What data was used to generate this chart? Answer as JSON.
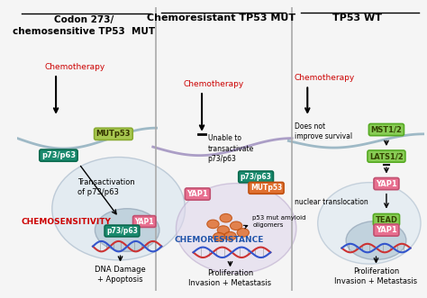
{
  "bg_color": "#f5f5f5",
  "cell_color": "#dce8f0",
  "nucleus_color": "#c8d8e8",
  "panel2_cell_color": "#e0d8ec",
  "title1": "Codon 273/\nchemosensitive TP53  MUT",
  "title2": "Chemoresistant TP53 MUT",
  "title3": "TP53 WT",
  "chemo_color": "#cc0000",
  "teal_color": "#1a8a6e",
  "pink_color": "#e87090",
  "orange_color": "#e07030",
  "light_green_color": "#88bb44",
  "text_color": "#333333",
  "blue_text_color": "#2255aa",
  "red_bold_color": "#cc0000",
  "divider_color": "#aaaaaa"
}
